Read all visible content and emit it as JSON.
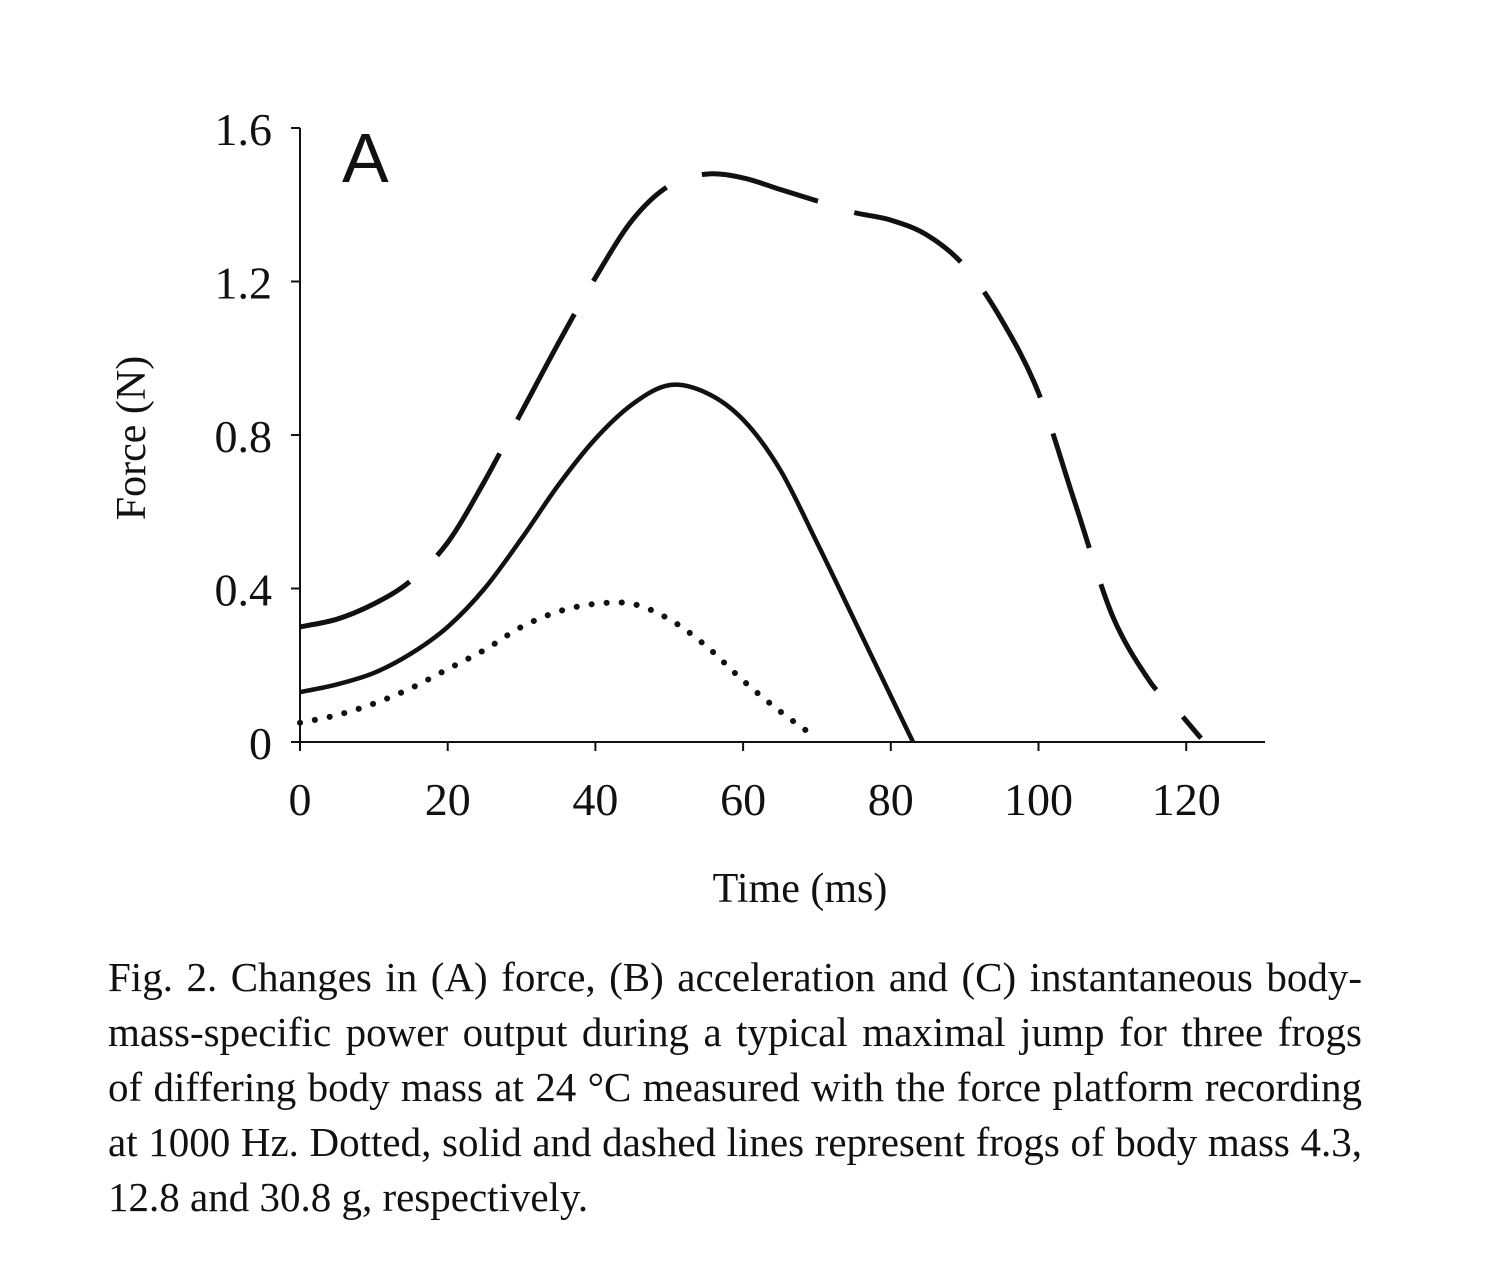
{
  "chart_data": {
    "type": "line",
    "panel_label": "A",
    "xlabel": "Time (ms)",
    "ylabel": "Force (N)",
    "xlim": [
      0,
      130
    ],
    "ylim": [
      0,
      1.6
    ],
    "x_ticks": [
      0,
      20,
      40,
      60,
      80,
      100,
      120
    ],
    "y_ticks": [
      0,
      0.4,
      0.8,
      1.2,
      1.6
    ],
    "y_tick_labels": [
      "0",
      "0.4",
      "0.8",
      "1.2",
      "1.6"
    ],
    "grid": false,
    "legend": "none",
    "series": [
      {
        "style": "dotted",
        "x": [
          0,
          5,
          10,
          15,
          20,
          25,
          30,
          35,
          40,
          45,
          50,
          55,
          60,
          65,
          70
        ],
        "y": [
          0.05,
          0.07,
          0.1,
          0.14,
          0.19,
          0.24,
          0.3,
          0.34,
          0.36,
          0.36,
          0.32,
          0.25,
          0.16,
          0.08,
          0.01
        ]
      },
      {
        "style": "solid",
        "x": [
          0,
          5,
          10,
          15,
          20,
          25,
          30,
          35,
          40,
          45,
          50,
          55,
          60,
          65,
          70,
          75,
          80,
          83
        ],
        "y": [
          0.13,
          0.15,
          0.18,
          0.23,
          0.3,
          0.4,
          0.53,
          0.67,
          0.79,
          0.88,
          0.93,
          0.91,
          0.84,
          0.71,
          0.52,
          0.32,
          0.12,
          0.0
        ]
      },
      {
        "style": "dashed",
        "x": [
          0,
          5,
          10,
          15,
          20,
          25,
          30,
          35,
          40,
          45,
          50,
          55,
          60,
          65,
          70,
          75,
          80,
          85,
          90,
          95,
          100,
          105,
          110,
          115,
          118,
          122
        ],
        "y": [
          0.3,
          0.32,
          0.36,
          0.42,
          0.52,
          0.68,
          0.86,
          1.04,
          1.21,
          1.36,
          1.45,
          1.48,
          1.47,
          1.44,
          1.41,
          1.38,
          1.36,
          1.32,
          1.24,
          1.1,
          0.91,
          0.62,
          0.33,
          0.16,
          0.1,
          0.01
        ]
      }
    ]
  },
  "caption": "Fig. 2. Changes in (A) force, (B) acceleration and (C) instantaneous body-mass-specific power output during a typical maximal jump for three frogs of differing body mass at 24 °C measured with the force platform recording at 1000 Hz. Dotted, solid and dashed lines represent frogs of body mass 4.3, 12.8 and 30.8 g, respectively."
}
